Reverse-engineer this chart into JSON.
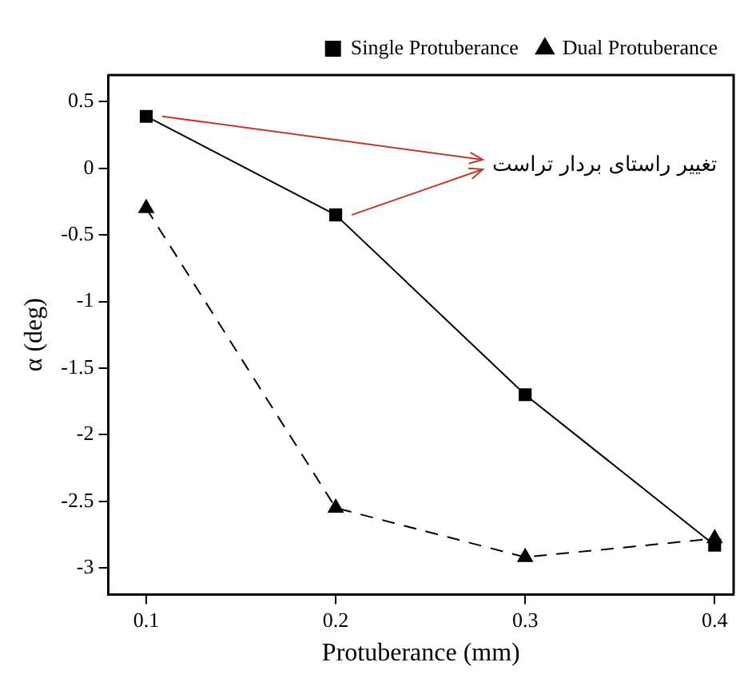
{
  "chart_data": {
    "type": "line",
    "xlabel": "Protuberance (mm)",
    "ylabel": "α (deg)",
    "x": [
      0.1,
      0.2,
      0.3,
      0.4
    ],
    "series": [
      {
        "name": "Single Protuberance",
        "color": "#000000",
        "values": [
          0.39,
          -0.35,
          -1.7,
          -2.83
        ],
        "marker": "square",
        "line_style": "solid"
      },
      {
        "name": "Dual Protuberance",
        "color": "#000000",
        "values": [
          -0.3,
          -2.55,
          -2.92,
          -2.78
        ],
        "marker": "triangle",
        "line_style": "dashed"
      }
    ],
    "xlim": [
      0.08,
      0.41
    ],
    "xticks": [
      0.1,
      0.2,
      0.3,
      0.4
    ],
    "ylim": [
      -3.2,
      0.7
    ],
    "yticks": [
      0.5,
      0,
      -0.5,
      -1,
      -1.5,
      -2,
      -2.5,
      -3
    ],
    "grid": false,
    "legend": "top right",
    "annotations": [
      "تغییر راستای بردار تراست"
    ]
  }
}
